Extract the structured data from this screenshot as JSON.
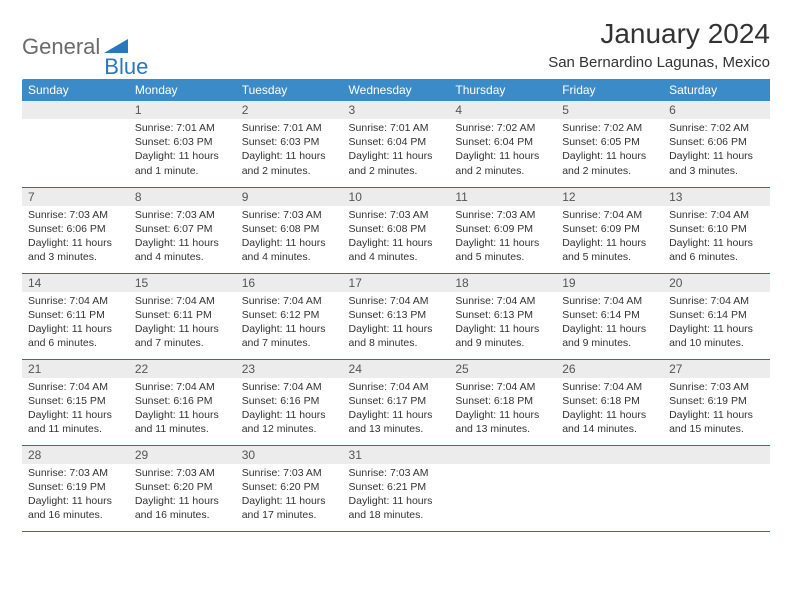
{
  "logo": {
    "part1": "General",
    "part2": "Blue"
  },
  "title": "January 2024",
  "location": "San Bernardino Lagunas, Mexico",
  "colors": {
    "header_bg": "#3b8bc8",
    "header_text": "#ffffff",
    "daynum_bg": "#ececec",
    "rule": "#2a6fa8",
    "logo_gray": "#6b6b6b",
    "logo_blue": "#2a77bd"
  },
  "weekdays": [
    "Sunday",
    "Monday",
    "Tuesday",
    "Wednesday",
    "Thursday",
    "Friday",
    "Saturday"
  ],
  "weeks": [
    [
      {
        "n": "",
        "lines": []
      },
      {
        "n": "1",
        "lines": [
          "Sunrise: 7:01 AM",
          "Sunset: 6:03 PM",
          "Daylight: 11 hours and 1 minute."
        ]
      },
      {
        "n": "2",
        "lines": [
          "Sunrise: 7:01 AM",
          "Sunset: 6:03 PM",
          "Daylight: 11 hours and 2 minutes."
        ]
      },
      {
        "n": "3",
        "lines": [
          "Sunrise: 7:01 AM",
          "Sunset: 6:04 PM",
          "Daylight: 11 hours and 2 minutes."
        ]
      },
      {
        "n": "4",
        "lines": [
          "Sunrise: 7:02 AM",
          "Sunset: 6:04 PM",
          "Daylight: 11 hours and 2 minutes."
        ]
      },
      {
        "n": "5",
        "lines": [
          "Sunrise: 7:02 AM",
          "Sunset: 6:05 PM",
          "Daylight: 11 hours and 2 minutes."
        ]
      },
      {
        "n": "6",
        "lines": [
          "Sunrise: 7:02 AM",
          "Sunset: 6:06 PM",
          "Daylight: 11 hours and 3 minutes."
        ]
      }
    ],
    [
      {
        "n": "7",
        "lines": [
          "Sunrise: 7:03 AM",
          "Sunset: 6:06 PM",
          "Daylight: 11 hours and 3 minutes."
        ]
      },
      {
        "n": "8",
        "lines": [
          "Sunrise: 7:03 AM",
          "Sunset: 6:07 PM",
          "Daylight: 11 hours and 4 minutes."
        ]
      },
      {
        "n": "9",
        "lines": [
          "Sunrise: 7:03 AM",
          "Sunset: 6:08 PM",
          "Daylight: 11 hours and 4 minutes."
        ]
      },
      {
        "n": "10",
        "lines": [
          "Sunrise: 7:03 AM",
          "Sunset: 6:08 PM",
          "Daylight: 11 hours and 4 minutes."
        ]
      },
      {
        "n": "11",
        "lines": [
          "Sunrise: 7:03 AM",
          "Sunset: 6:09 PM",
          "Daylight: 11 hours and 5 minutes."
        ]
      },
      {
        "n": "12",
        "lines": [
          "Sunrise: 7:04 AM",
          "Sunset: 6:09 PM",
          "Daylight: 11 hours and 5 minutes."
        ]
      },
      {
        "n": "13",
        "lines": [
          "Sunrise: 7:04 AM",
          "Sunset: 6:10 PM",
          "Daylight: 11 hours and 6 minutes."
        ]
      }
    ],
    [
      {
        "n": "14",
        "lines": [
          "Sunrise: 7:04 AM",
          "Sunset: 6:11 PM",
          "Daylight: 11 hours and 6 minutes."
        ]
      },
      {
        "n": "15",
        "lines": [
          "Sunrise: 7:04 AM",
          "Sunset: 6:11 PM",
          "Daylight: 11 hours and 7 minutes."
        ]
      },
      {
        "n": "16",
        "lines": [
          "Sunrise: 7:04 AM",
          "Sunset: 6:12 PM",
          "Daylight: 11 hours and 7 minutes."
        ]
      },
      {
        "n": "17",
        "lines": [
          "Sunrise: 7:04 AM",
          "Sunset: 6:13 PM",
          "Daylight: 11 hours and 8 minutes."
        ]
      },
      {
        "n": "18",
        "lines": [
          "Sunrise: 7:04 AM",
          "Sunset: 6:13 PM",
          "Daylight: 11 hours and 9 minutes."
        ]
      },
      {
        "n": "19",
        "lines": [
          "Sunrise: 7:04 AM",
          "Sunset: 6:14 PM",
          "Daylight: 11 hours and 9 minutes."
        ]
      },
      {
        "n": "20",
        "lines": [
          "Sunrise: 7:04 AM",
          "Sunset: 6:14 PM",
          "Daylight: 11 hours and 10 minutes."
        ]
      }
    ],
    [
      {
        "n": "21",
        "lines": [
          "Sunrise: 7:04 AM",
          "Sunset: 6:15 PM",
          "Daylight: 11 hours and 11 minutes."
        ]
      },
      {
        "n": "22",
        "lines": [
          "Sunrise: 7:04 AM",
          "Sunset: 6:16 PM",
          "Daylight: 11 hours and 11 minutes."
        ]
      },
      {
        "n": "23",
        "lines": [
          "Sunrise: 7:04 AM",
          "Sunset: 6:16 PM",
          "Daylight: 11 hours and 12 minutes."
        ]
      },
      {
        "n": "24",
        "lines": [
          "Sunrise: 7:04 AM",
          "Sunset: 6:17 PM",
          "Daylight: 11 hours and 13 minutes."
        ]
      },
      {
        "n": "25",
        "lines": [
          "Sunrise: 7:04 AM",
          "Sunset: 6:18 PM",
          "Daylight: 11 hours and 13 minutes."
        ]
      },
      {
        "n": "26",
        "lines": [
          "Sunrise: 7:04 AM",
          "Sunset: 6:18 PM",
          "Daylight: 11 hours and 14 minutes."
        ]
      },
      {
        "n": "27",
        "lines": [
          "Sunrise: 7:03 AM",
          "Sunset: 6:19 PM",
          "Daylight: 11 hours and 15 minutes."
        ]
      }
    ],
    [
      {
        "n": "28",
        "lines": [
          "Sunrise: 7:03 AM",
          "Sunset: 6:19 PM",
          "Daylight: 11 hours and 16 minutes."
        ]
      },
      {
        "n": "29",
        "lines": [
          "Sunrise: 7:03 AM",
          "Sunset: 6:20 PM",
          "Daylight: 11 hours and 16 minutes."
        ]
      },
      {
        "n": "30",
        "lines": [
          "Sunrise: 7:03 AM",
          "Sunset: 6:20 PM",
          "Daylight: 11 hours and 17 minutes."
        ]
      },
      {
        "n": "31",
        "lines": [
          "Sunrise: 7:03 AM",
          "Sunset: 6:21 PM",
          "Daylight: 11 hours and 18 minutes."
        ]
      },
      {
        "n": "",
        "lines": []
      },
      {
        "n": "",
        "lines": []
      },
      {
        "n": "",
        "lines": []
      }
    ]
  ]
}
